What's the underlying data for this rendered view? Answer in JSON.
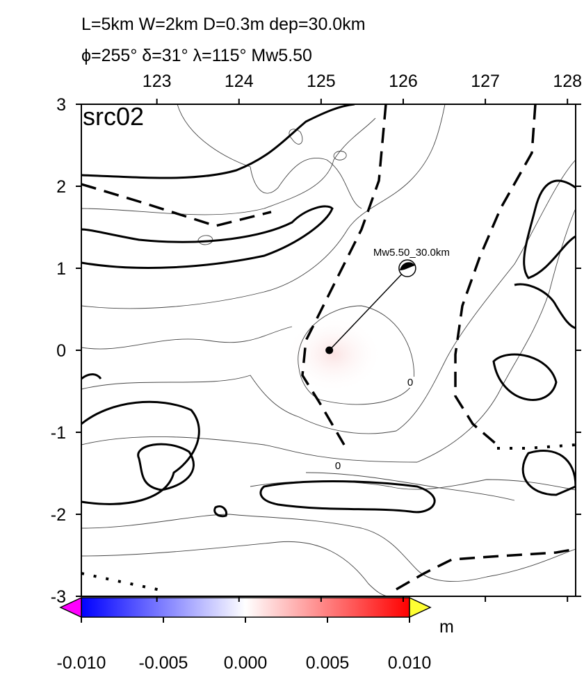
{
  "map": {
    "title_lines": [
      "L=5km W=2km D=0.3m dep=30.0km",
      "ϕ=255° δ=31° λ=115° Mw5.50"
    ],
    "panel_label": "src02",
    "xlim": [
      122.08,
      128.1
    ],
    "ylim": [
      -3,
      3
    ],
    "xticks": [
      123,
      124,
      125,
      126,
      127,
      128
    ],
    "yticks": [
      3,
      2,
      1,
      0,
      -1,
      -2,
      -3
    ],
    "source": {
      "lon": 125.1,
      "lat": 0
    },
    "epicenter": {
      "lon": 126.05,
      "lat": 1.0,
      "label": "Mw5.50_30.0km"
    },
    "contour_labels": [
      "0",
      "0"
    ],
    "colorbar": {
      "lim": [
        -0.01,
        0.01
      ],
      "ticks": [
        {
          "value": -0.01,
          "label": "-0.010"
        },
        {
          "value": -0.005,
          "label": "-0.005"
        },
        {
          "value": 0,
          "label": "0.000"
        },
        {
          "value": 0.005,
          "label": "0.005"
        },
        {
          "value": 0.01,
          "label": "0.010"
        }
      ],
      "unit": "m",
      "low_color": "#ff00ff",
      "high_color": "#ffff33"
    }
  }
}
